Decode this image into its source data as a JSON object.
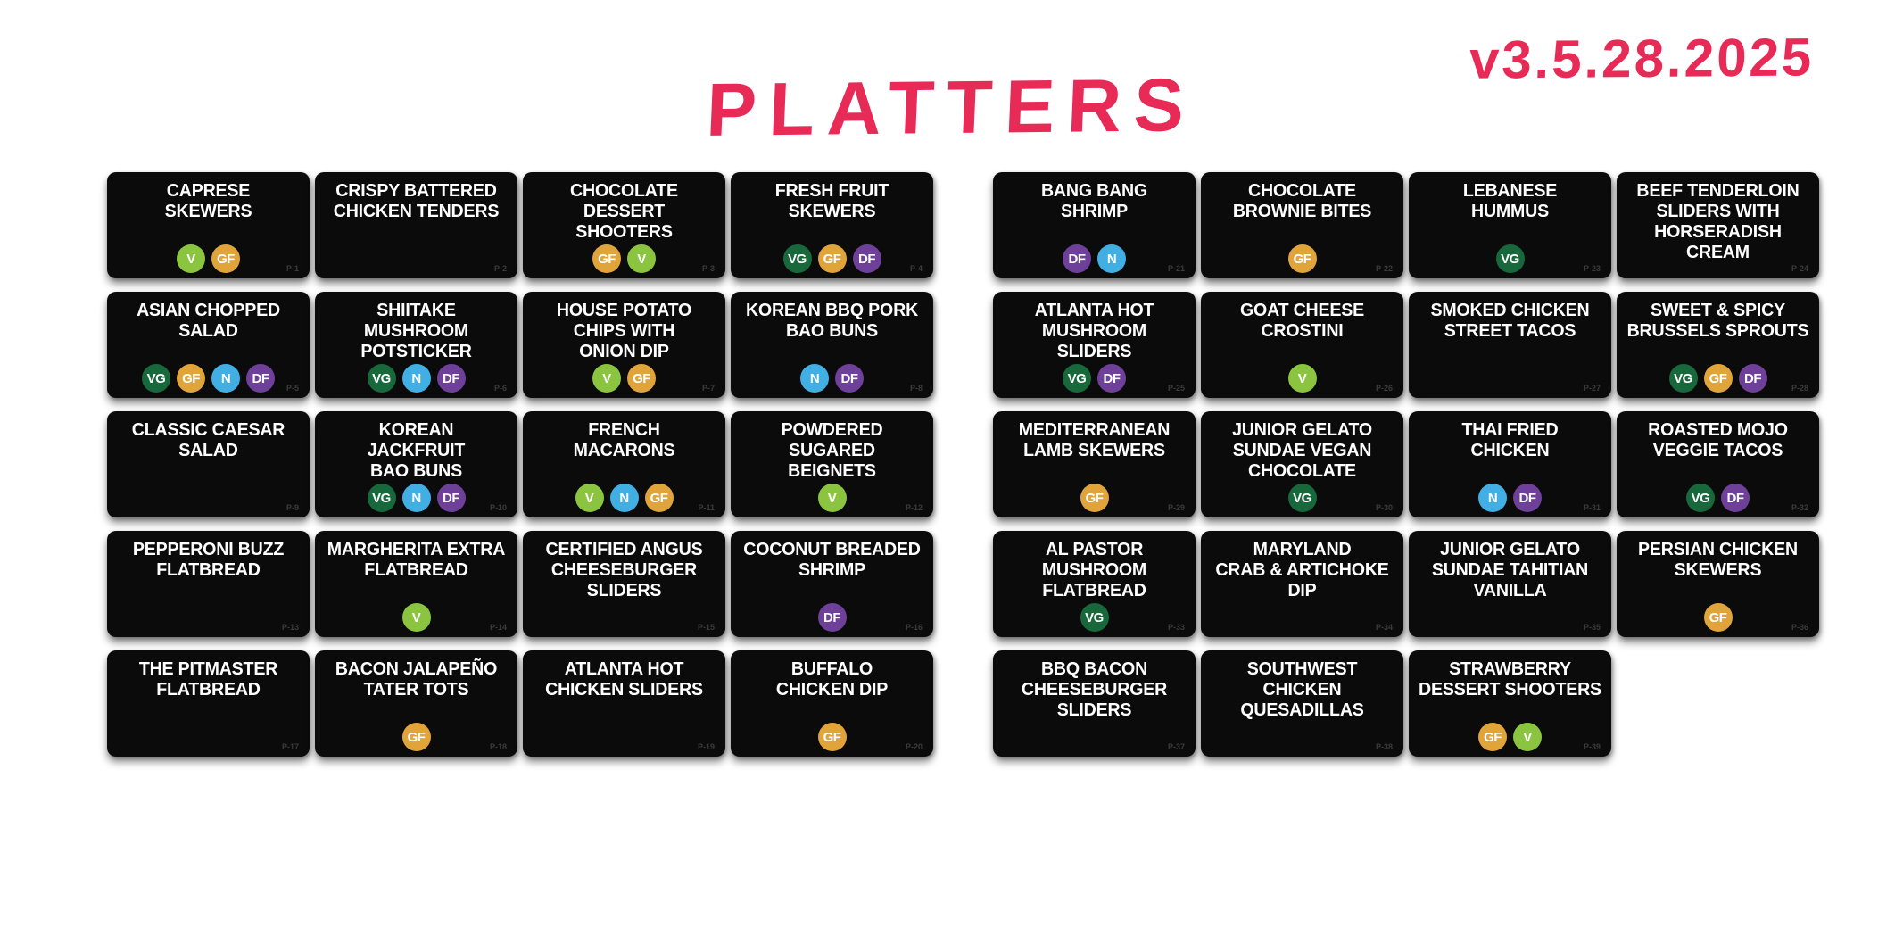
{
  "page": {
    "title": "PLATTERS",
    "version": "v3.5.28.2025"
  },
  "colors": {
    "accent": "#E72A56",
    "tile_background": "#0B0B0B",
    "tile_text": "#FFFFFF"
  },
  "badge_types": {
    "V": {
      "label": "V",
      "color": "#8BC540"
    },
    "GF": {
      "label": "GF",
      "color": "#E0A43B"
    },
    "VG": {
      "label": "VG",
      "color": "#17693B"
    },
    "N": {
      "label": "N",
      "color": "#41AFE4"
    },
    "DF": {
      "label": "DF",
      "color": "#6E4099"
    }
  },
  "left_grid": {
    "tiles": [
      {
        "title": "CAPRESE\nSKEWERS",
        "badges": [
          "V",
          "GF"
        ],
        "code": "P-1"
      },
      {
        "title": "CRISPY BATTERED\nCHICKEN TENDERS",
        "badges": [],
        "code": "P-2"
      },
      {
        "title": "CHOCOLATE\nDESSERT\nSHOOTERS",
        "badges": [
          "GF",
          "V"
        ],
        "code": "P-3"
      },
      {
        "title": "FRESH FRUIT\nSKEWERS",
        "badges": [
          "VG",
          "GF",
          "DF"
        ],
        "code": "P-4"
      },
      {
        "title": "ASIAN CHOPPED\nSALAD",
        "badges": [
          "VG",
          "GF",
          "N",
          "DF"
        ],
        "code": "P-5"
      },
      {
        "title": "SHIITAKE\nMUSHROOM\nPOTSTICKER",
        "badges": [
          "VG",
          "N",
          "DF"
        ],
        "code": "P-6"
      },
      {
        "title": "HOUSE POTATO\nCHIPS WITH\nONION DIP",
        "badges": [
          "V",
          "GF"
        ],
        "code": "P-7"
      },
      {
        "title": "KOREAN BBQ PORK\nBAO BUNS",
        "badges": [
          "N",
          "DF"
        ],
        "code": "P-8"
      },
      {
        "title": "CLASSIC CAESAR\nSALAD",
        "badges": [],
        "code": "P-9"
      },
      {
        "title": "KOREAN\nJACKFRUIT\nBAO BUNS",
        "badges": [
          "VG",
          "N",
          "DF"
        ],
        "code": "P-10"
      },
      {
        "title": "FRENCH\nMACARONS",
        "badges": [
          "V",
          "N",
          "GF"
        ],
        "code": "P-11"
      },
      {
        "title": "POWDERED\nSUGARED\nBEIGNETS",
        "badges": [
          "V"
        ],
        "code": "P-12"
      },
      {
        "title": "PEPPERONI BUZZ\nFLATBREAD",
        "badges": [],
        "code": "P-13"
      },
      {
        "title": "MARGHERITA EXTRA\nFLATBREAD",
        "badges": [
          "V"
        ],
        "code": "P-14"
      },
      {
        "title": "CERTIFIED ANGUS\nCHEESEBURGER\nSLIDERS",
        "badges": [],
        "code": "P-15"
      },
      {
        "title": "COCONUT BREADED\nSHRIMP",
        "badges": [
          "DF"
        ],
        "code": "P-16"
      },
      {
        "title": "THE PITMASTER\nFLATBREAD",
        "badges": [],
        "code": "P-17"
      },
      {
        "title": "BACON JALAPEÑO\nTATER TOTS",
        "badges": [
          "GF"
        ],
        "code": "P-18"
      },
      {
        "title": "ATLANTA HOT\nCHICKEN SLIDERS",
        "badges": [],
        "code": "P-19"
      },
      {
        "title": "BUFFALO\nCHICKEN DIP",
        "badges": [
          "GF"
        ],
        "code": "P-20"
      }
    ]
  },
  "right_grid": {
    "tiles": [
      {
        "title": "BANG BANG\nSHRIMP",
        "badges": [
          "DF",
          "N"
        ],
        "code": "P-21"
      },
      {
        "title": "CHOCOLATE\nBROWNIE BITES",
        "badges": [
          "GF"
        ],
        "code": "P-22"
      },
      {
        "title": "LEBANESE\nHUMMUS",
        "badges": [
          "VG"
        ],
        "code": "P-23"
      },
      {
        "title": "BEEF TENDERLOIN\nSLIDERS WITH\nHORSERADISH\nCREAM",
        "badges": [],
        "code": "P-24"
      },
      {
        "title": "ATLANTA HOT\nMUSHROOM\nSLIDERS",
        "badges": [
          "VG",
          "DF"
        ],
        "code": "P-25"
      },
      {
        "title": "GOAT CHEESE\nCROSTINI",
        "badges": [
          "V"
        ],
        "code": "P-26"
      },
      {
        "title": "SMOKED CHICKEN\nSTREET TACOS",
        "badges": [],
        "code": "P-27"
      },
      {
        "title": "SWEET & SPICY\nBRUSSELS SPROUTS",
        "badges": [
          "VG",
          "GF",
          "DF"
        ],
        "code": "P-28"
      },
      {
        "title": "MEDITERRANEAN\nLAMB SKEWERS",
        "badges": [
          "GF"
        ],
        "code": "P-29"
      },
      {
        "title": "JUNIOR GELATO\nSUNDAE VEGAN\nCHOCOLATE",
        "badges": [
          "VG"
        ],
        "code": "P-30"
      },
      {
        "title": "THAI FRIED\nCHICKEN",
        "badges": [
          "N",
          "DF"
        ],
        "code": "P-31"
      },
      {
        "title": "ROASTED MOJO\nVEGGIE TACOS",
        "badges": [
          "VG",
          "DF"
        ],
        "code": "P-32"
      },
      {
        "title": "AL PASTOR\nMUSHROOM\nFLATBREAD",
        "badges": [
          "VG"
        ],
        "code": "P-33"
      },
      {
        "title": "MARYLAND\nCRAB & ARTICHOKE\nDIP",
        "badges": [],
        "code": "P-34"
      },
      {
        "title": "JUNIOR GELATO\nSUNDAE TAHITIAN\nVANILLA",
        "badges": [],
        "code": "P-35"
      },
      {
        "title": "PERSIAN CHICKEN\nSKEWERS",
        "badges": [
          "GF"
        ],
        "code": "P-36"
      },
      {
        "title": "BBQ BACON\nCHEESEBURGER\nSLIDERS",
        "badges": [],
        "code": "P-37"
      },
      {
        "title": "SOUTHWEST\nCHICKEN\nQUESADILLAS",
        "badges": [],
        "code": "P-38"
      },
      {
        "title": "STRAWBERRY\nDESSERT SHOOTERS",
        "badges": [
          "GF",
          "V"
        ],
        "code": "P-39"
      }
    ]
  }
}
